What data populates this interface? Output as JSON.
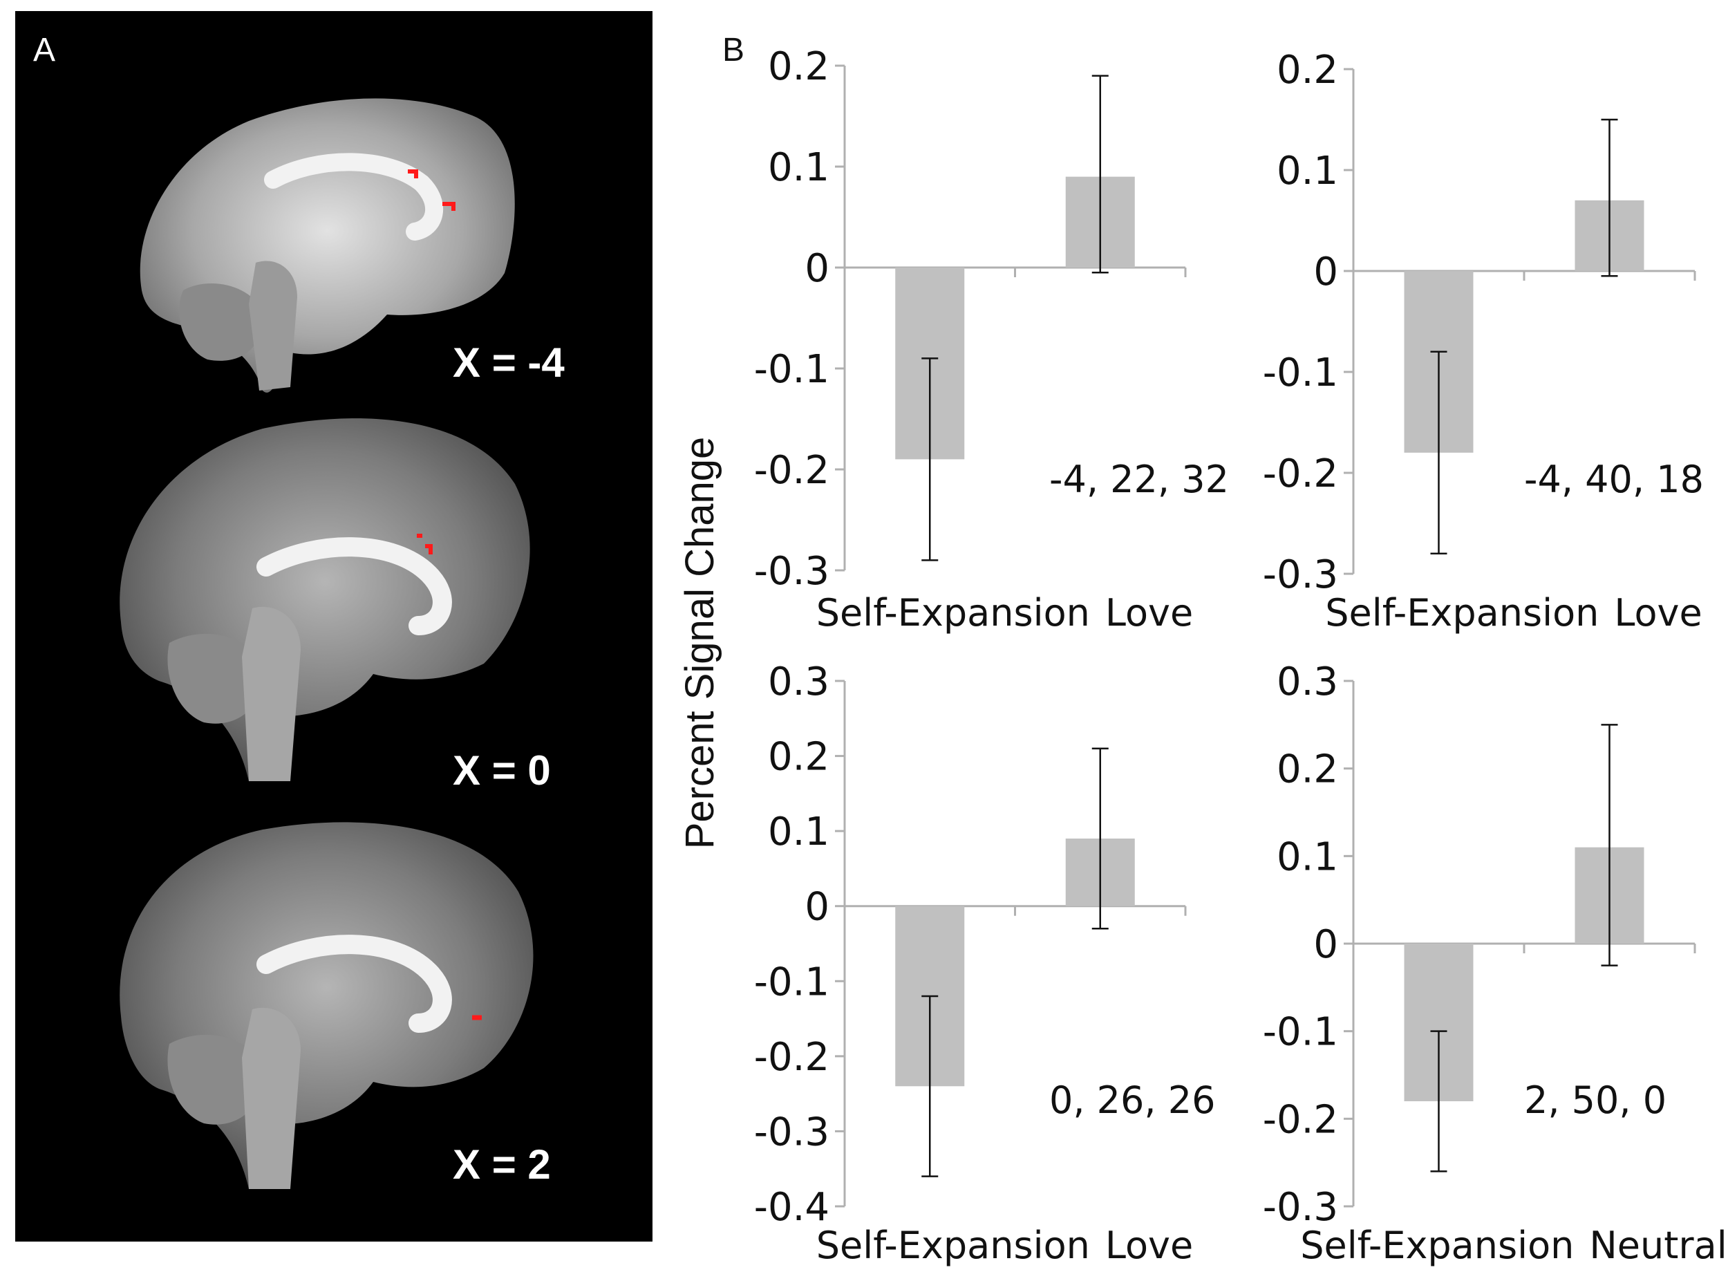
{
  "panel_a": {
    "letter": "A",
    "slices": [
      {
        "label": "X = -4"
      },
      {
        "label": "X = 0"
      },
      {
        "label": "X = 2"
      }
    ]
  },
  "panel_b": {
    "letter": "B",
    "ylabel": "Percent Signal Change"
  },
  "colors": {
    "bar": "#c0c0c0",
    "axis": "#b0b0b0",
    "error": "#111111",
    "activation": "#ff1a1a",
    "background_a": "#000000"
  },
  "chart_data": [
    {
      "type": "bar",
      "categories": [
        "Self-Expansion",
        "Love"
      ],
      "values": [
        -0.19,
        0.09
      ],
      "errors": [
        [
          -0.29,
          -0.09
        ],
        [
          -0.005,
          0.19
        ]
      ],
      "annotation": "-4, 22, 32",
      "ylim": [
        -0.3,
        0.2
      ],
      "yticks": [
        "0.2",
        "0.1",
        "0",
        "-0.1",
        "-0.2",
        "-0.3"
      ],
      "ytick_values": [
        0.2,
        0.1,
        0,
        -0.1,
        -0.2,
        -0.3
      ]
    },
    {
      "type": "bar",
      "categories": [
        "Self-Expansion",
        "Love"
      ],
      "values": [
        -0.18,
        0.07
      ],
      "errors": [
        [
          -0.28,
          -0.08
        ],
        [
          -0.005,
          0.15
        ]
      ],
      "annotation": "-4, 40, 18",
      "ylim": [
        -0.3,
        0.2
      ],
      "yticks": [
        "0.2",
        "0.1",
        "0",
        "-0.1",
        "-0.2",
        "-0.3"
      ],
      "ytick_values": [
        0.2,
        0.1,
        0,
        -0.1,
        -0.2,
        -0.3
      ]
    },
    {
      "type": "bar",
      "categories": [
        "Self-Expansion",
        "Love"
      ],
      "values": [
        -0.24,
        0.09
      ],
      "errors": [
        [
          -0.36,
          -0.12
        ],
        [
          -0.03,
          0.21
        ]
      ],
      "annotation": "0, 26, 26",
      "ylim": [
        -0.4,
        0.3
      ],
      "yticks": [
        "0.3",
        "0.2",
        "0.1",
        "0",
        "-0.1",
        "-0.2",
        "-0.3",
        "-0.4"
      ],
      "ytick_values": [
        0.3,
        0.2,
        0.1,
        0,
        -0.1,
        -0.2,
        -0.3,
        -0.4
      ]
    },
    {
      "type": "bar",
      "categories": [
        "Self-Expansion",
        "Neutral"
      ],
      "values": [
        -0.18,
        0.11
      ],
      "errors": [
        [
          -0.26,
          -0.1
        ],
        [
          -0.025,
          0.25
        ]
      ],
      "annotation": "2, 50, 0",
      "ylim": [
        -0.3,
        0.3
      ],
      "yticks": [
        "0.3",
        "0.2",
        "0.1",
        "0",
        "-0.1",
        "-0.2",
        "-0.3"
      ],
      "ytick_values": [
        0.3,
        0.2,
        0.1,
        0,
        -0.1,
        -0.2,
        -0.3
      ]
    }
  ]
}
